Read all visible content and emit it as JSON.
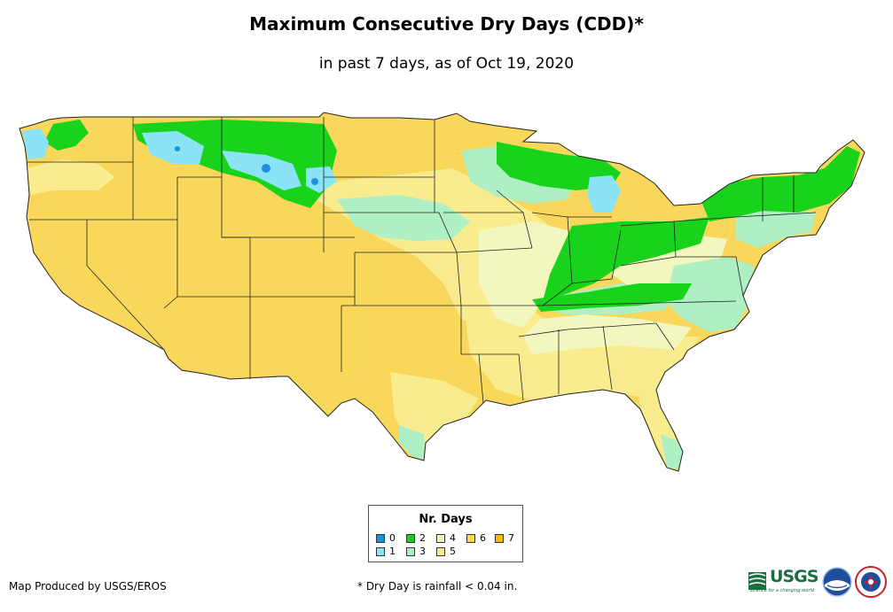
{
  "header": {
    "title": "Maximum Consecutive Dry Days (CDD)*",
    "subtitle": "in past 7 days, as of Oct 19, 2020"
  },
  "legend": {
    "title": "Nr. Days",
    "items": [
      {
        "label": "0",
        "color": "#1f8fe0"
      },
      {
        "label": "1",
        "color": "#8be4f5"
      },
      {
        "label": "2",
        "color": "#19d21b"
      },
      {
        "label": "3",
        "color": "#aef0c4"
      },
      {
        "label": "4",
        "color": "#f2f7bf"
      },
      {
        "label": "5",
        "color": "#f9ec8f"
      },
      {
        "label": "6",
        "color": "#f9d75a"
      },
      {
        "label": "7",
        "color": "#f4b90f"
      }
    ]
  },
  "footer": {
    "credit": "Map Produced by USGS/EROS",
    "footnote": "* Dry Day is rainfall < 0.04 in.",
    "usgs_logo": "USGS",
    "usgs_tagline": "science for a changing world"
  },
  "map": {
    "region": "Contiguous United States",
    "base_color": "#f9d75a",
    "border_color": "#222222"
  }
}
